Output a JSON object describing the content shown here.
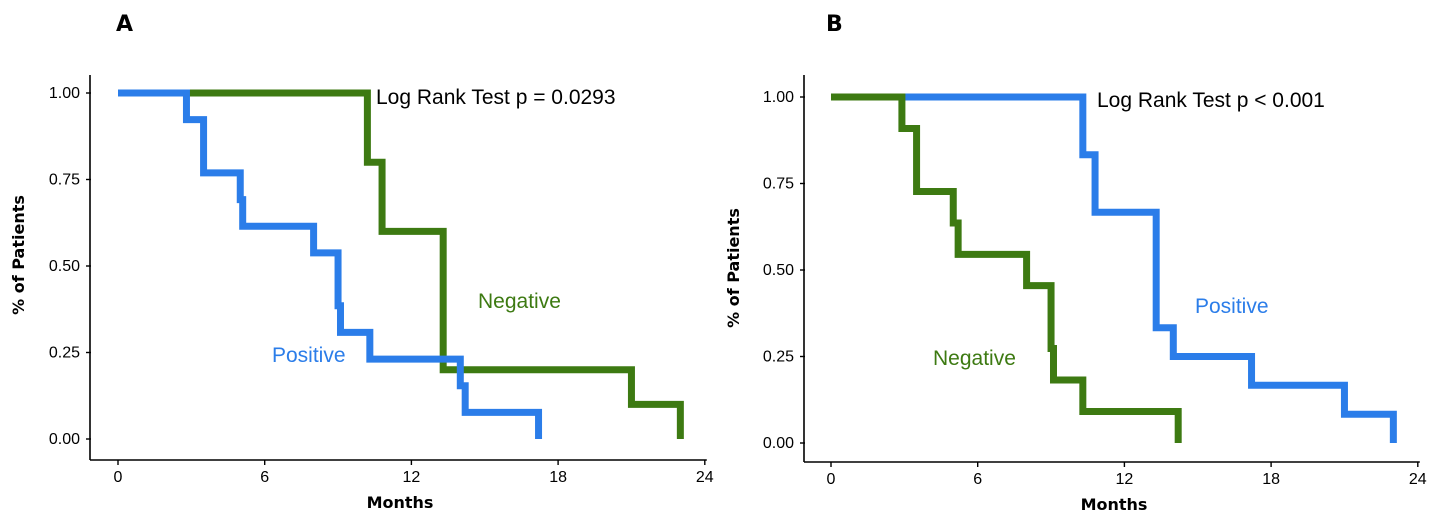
{
  "chart_data": [
    {
      "panel_label": "A",
      "type": "line",
      "xlabel": "Months",
      "ylabel": "% of Patients",
      "xlim": [
        0,
        24
      ],
      "ylim": [
        0,
        1
      ],
      "x_ticks": [
        0,
        6,
        12,
        18,
        24
      ],
      "y_ticks": [
        0,
        0.25,
        0.5,
        0.75,
        1
      ],
      "x_tick_labels": [
        "0",
        "6",
        "12",
        "18",
        "24"
      ],
      "y_tick_labels": [
        "0.00",
        "0.25",
        "0.50",
        "0.75",
        "1.00"
      ],
      "annotation": "Log Rank Test p = 0.0293",
      "series": [
        {
          "name": "Negative",
          "color": "#3d7a12",
          "steps": [
            [
              0,
              1.0
            ],
            [
              10.2,
              0.8
            ],
            [
              10.8,
              0.6
            ],
            [
              13.3,
              0.2
            ],
            [
              21.0,
              0.1
            ],
            [
              23.0,
              0.0
            ]
          ],
          "end_x": 23.0
        },
        {
          "name": "Positive",
          "color": "#2b7de9",
          "steps": [
            [
              0,
              1.0
            ],
            [
              2.8,
              0.923
            ],
            [
              3.5,
              0.769
            ],
            [
              5.0,
              0.692
            ],
            [
              5.1,
              0.615
            ],
            [
              8.0,
              0.538
            ],
            [
              9.0,
              0.385
            ],
            [
              9.1,
              0.308
            ],
            [
              10.3,
              0.231
            ],
            [
              14.0,
              0.154
            ],
            [
              14.2,
              0.077
            ],
            [
              17.2,
              0.0
            ]
          ],
          "end_x": 17.2
        }
      ]
    },
    {
      "panel_label": "B",
      "type": "line",
      "xlabel": "Months",
      "ylabel": "% of Patients",
      "xlim": [
        0,
        24
      ],
      "ylim": [
        0,
        1
      ],
      "x_ticks": [
        0,
        6,
        12,
        18,
        24
      ],
      "y_ticks": [
        0,
        0.25,
        0.5,
        0.75,
        1
      ],
      "x_tick_labels": [
        "0",
        "6",
        "12",
        "18",
        "24"
      ],
      "y_tick_labels": [
        "0.00",
        "0.25",
        "0.50",
        "0.75",
        "1.00"
      ],
      "annotation": "Log Rank Test p < 0.001",
      "series": [
        {
          "name": "Positive",
          "color": "#2b7de9",
          "steps": [
            [
              0,
              1.0
            ],
            [
              10.3,
              0.833
            ],
            [
              10.8,
              0.667
            ],
            [
              13.3,
              0.333
            ],
            [
              14.0,
              0.25
            ],
            [
              17.2,
              0.167
            ],
            [
              21.0,
              0.083
            ],
            [
              23.0,
              0.0
            ]
          ],
          "end_x": 23.0
        },
        {
          "name": "Negative",
          "color": "#3d7a12",
          "steps": [
            [
              0,
              1.0
            ],
            [
              2.9,
              0.909
            ],
            [
              3.5,
              0.727
            ],
            [
              5.0,
              0.636
            ],
            [
              5.2,
              0.545
            ],
            [
              8.0,
              0.455
            ],
            [
              9.0,
              0.273
            ],
            [
              9.1,
              0.182
            ],
            [
              10.3,
              0.091
            ],
            [
              14.2,
              0.0
            ]
          ],
          "end_x": 14.2
        }
      ]
    }
  ]
}
